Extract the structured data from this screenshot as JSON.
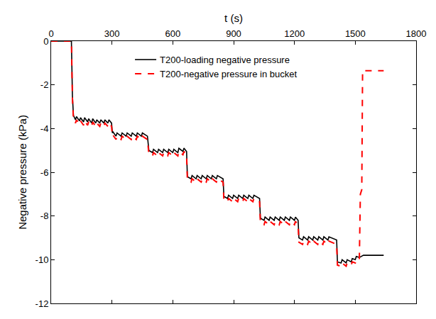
{
  "chart_data": {
    "type": "line",
    "xlabel": "t (s)",
    "ylabel": "Negative pressure (kPa)",
    "xlim": [
      0,
      1800
    ],
    "xticks": [
      0,
      300,
      600,
      900,
      1200,
      1500,
      1800
    ],
    "ylim": [
      -12,
      0
    ],
    "yticks": [
      -12,
      -10,
      -8,
      -6,
      -4,
      -2,
      0
    ],
    "grid": false,
    "legend": "top",
    "series": [
      {
        "name": "T200-loading negative pressure",
        "color": "#000000",
        "line_style": "solid",
        "x": [
          0,
          100,
          105,
          110,
          120,
          125,
          140,
          145,
          160,
          165,
          180,
          185,
          200,
          205,
          220,
          225,
          240,
          245,
          260,
          265,
          280,
          285,
          298,
          302,
          305,
          320,
          325,
          345,
          350,
          370,
          375,
          395,
          400,
          420,
          425,
          445,
          450,
          475,
          482,
          500,
          505,
          525,
          530,
          550,
          555,
          575,
          580,
          600,
          605,
          625,
          630,
          650,
          655,
          668,
          672,
          690,
          695,
          715,
          720,
          740,
          745,
          765,
          770,
          790,
          795,
          815,
          820,
          848,
          852,
          870,
          875,
          895,
          900,
          920,
          925,
          945,
          950,
          970,
          975,
          995,
          1000,
          1028,
          1032,
          1050,
          1055,
          1075,
          1080,
          1100,
          1105,
          1125,
          1130,
          1150,
          1155,
          1175,
          1180,
          1200,
          1205,
          1218,
          1222,
          1240,
          1245,
          1265,
          1270,
          1290,
          1295,
          1315,
          1320,
          1340,
          1345,
          1365,
          1370,
          1408,
          1412,
          1430,
          1435,
          1455,
          1460,
          1480,
          1485,
          1500,
          1505,
          1520,
          1540,
          1640
        ],
        "values": [
          0,
          0,
          -2.5,
          -3.4,
          -3.6,
          -3.45,
          -3.65,
          -3.5,
          -3.7,
          -3.5,
          -3.7,
          -3.55,
          -3.75,
          -3.55,
          -3.75,
          -3.6,
          -3.75,
          -3.6,
          -3.75,
          -3.6,
          -3.75,
          -3.6,
          -3.75,
          -4.2,
          -4.15,
          -4.35,
          -4.2,
          -4.35,
          -4.2,
          -4.35,
          -4.2,
          -4.35,
          -4.2,
          -4.35,
          -4.2,
          -4.35,
          -4.2,
          -4.35,
          -5.0,
          -5.1,
          -4.95,
          -5.1,
          -4.95,
          -5.1,
          -4.95,
          -5.1,
          -4.95,
          -5.1,
          -4.95,
          -5.1,
          -4.9,
          -5.05,
          -4.9,
          -5.05,
          -6.2,
          -6.3,
          -6.15,
          -6.3,
          -6.15,
          -6.3,
          -6.15,
          -6.3,
          -6.15,
          -6.3,
          -6.15,
          -6.3,
          -6.15,
          -6.3,
          -7.1,
          -7.2,
          -7.05,
          -7.2,
          -7.05,
          -7.2,
          -7.05,
          -7.2,
          -7.05,
          -7.2,
          -7.05,
          -7.2,
          -7.05,
          -7.2,
          -8.1,
          -8.2,
          -8.05,
          -8.2,
          -8.05,
          -8.2,
          -8.05,
          -8.2,
          -8.05,
          -8.2,
          -8.05,
          -8.2,
          -8.05,
          -8.2,
          -8.05,
          -8.2,
          -9.0,
          -9.1,
          -8.95,
          -9.1,
          -8.95,
          -9.1,
          -8.95,
          -9.1,
          -8.95,
          -9.1,
          -8.95,
          -9.1,
          -8.95,
          -9.1,
          -10.1,
          -10.15,
          -10.0,
          -10.15,
          -10.0,
          -10.1,
          -9.95,
          -10.0,
          -9.85,
          -9.9,
          -9.8,
          -9.8
        ]
      },
      {
        "name": "T200-negative pressure in bucket",
        "color": "#ff0000",
        "line_style": "dash",
        "x": [
          0,
          100,
          105,
          110,
          120,
          125,
          140,
          145,
          160,
          165,
          180,
          185,
          200,
          205,
          220,
          225,
          240,
          245,
          260,
          265,
          280,
          285,
          298,
          302,
          305,
          320,
          325,
          345,
          350,
          370,
          375,
          395,
          400,
          420,
          425,
          445,
          450,
          475,
          482,
          500,
          505,
          525,
          530,
          550,
          555,
          575,
          580,
          600,
          605,
          625,
          630,
          650,
          655,
          668,
          672,
          690,
          695,
          715,
          720,
          740,
          745,
          765,
          770,
          790,
          795,
          815,
          820,
          848,
          852,
          870,
          875,
          895,
          900,
          920,
          925,
          945,
          950,
          970,
          975,
          995,
          1000,
          1028,
          1032,
          1050,
          1055,
          1075,
          1080,
          1100,
          1105,
          1125,
          1130,
          1150,
          1155,
          1175,
          1180,
          1200,
          1205,
          1218,
          1222,
          1240,
          1245,
          1265,
          1270,
          1290,
          1295,
          1315,
          1320,
          1340,
          1345,
          1365,
          1370,
          1408,
          1412,
          1430,
          1435,
          1455,
          1460,
          1480,
          1485,
          1500,
          1505,
          1520,
          1525,
          1532,
          1536,
          1640
        ],
        "values": [
          0,
          0,
          -2.6,
          -3.55,
          -3.75,
          -3.6,
          -3.8,
          -3.65,
          -3.85,
          -3.65,
          -3.85,
          -3.7,
          -3.9,
          -3.7,
          -3.9,
          -3.75,
          -3.9,
          -3.75,
          -3.9,
          -3.75,
          -3.9,
          -3.75,
          -3.9,
          -4.35,
          -4.3,
          -4.5,
          -4.35,
          -4.5,
          -4.35,
          -4.5,
          -4.35,
          -4.5,
          -4.35,
          -4.5,
          -4.35,
          -4.5,
          -4.35,
          -4.5,
          -5.15,
          -5.25,
          -5.1,
          -5.25,
          -5.1,
          -5.25,
          -5.1,
          -5.25,
          -5.1,
          -5.25,
          -5.1,
          -5.25,
          -5.05,
          -5.2,
          -5.05,
          -5.2,
          -6.35,
          -6.45,
          -6.3,
          -6.45,
          -6.3,
          -6.45,
          -6.3,
          -6.45,
          -6.3,
          -6.45,
          -6.3,
          -6.45,
          -6.3,
          -6.45,
          -7.25,
          -7.35,
          -7.2,
          -7.35,
          -7.2,
          -7.35,
          -7.2,
          -7.35,
          -7.2,
          -7.35,
          -7.2,
          -7.35,
          -7.2,
          -7.35,
          -8.3,
          -8.4,
          -8.25,
          -8.4,
          -8.25,
          -8.4,
          -8.25,
          -8.4,
          -8.25,
          -8.4,
          -8.25,
          -8.4,
          -8.25,
          -8.4,
          -8.25,
          -8.4,
          -9.2,
          -9.3,
          -9.15,
          -9.3,
          -9.15,
          -9.3,
          -9.15,
          -9.3,
          -9.15,
          -9.3,
          -9.15,
          -9.3,
          -9.15,
          -9.3,
          -10.25,
          -10.3,
          -10.15,
          -10.3,
          -10.15,
          -10.25,
          -10.1,
          -10.15,
          -10.0,
          -10.0,
          -7.0,
          -6.8,
          -1.35,
          -1.35
        ]
      }
    ]
  }
}
